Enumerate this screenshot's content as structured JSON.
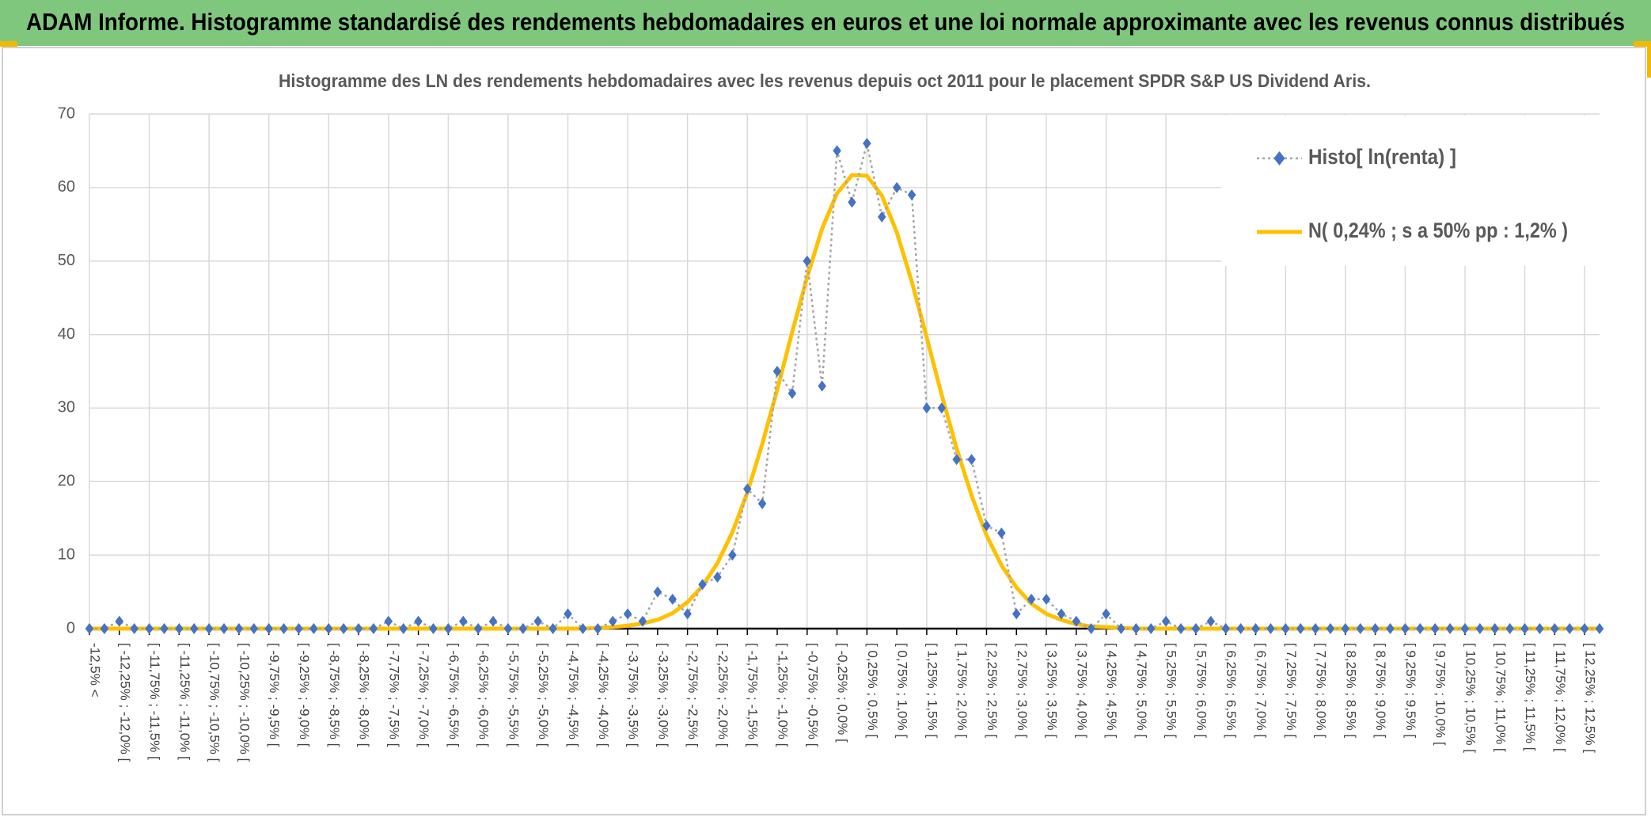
{
  "header": {
    "title": "ADAM Informe. Histogramme standardisé des rendements hebdomadaires en euros et une loi normale approximante avec les revenus connus distribués"
  },
  "chart_data": {
    "type": "line",
    "title": "Histogramme des LN des rendements hebdomadaires avec les revenus depuis oct 2011 pour le placement SPDR S&P US Dividend Aris.",
    "categories": [
      "-12,5% <",
      null,
      "[ -12,25% ; -12,0% [",
      null,
      "[ -11,75% ; -11,5% [",
      null,
      "[ -11,25% ; -11,0% [",
      null,
      "[ -10,75% ; -10,5% [",
      null,
      "[ -10,25% ; -10,0% [",
      null,
      "[ -9,75% ; -9,5% [",
      null,
      "[ -9,25% ; -9,0% [",
      null,
      "[ -8,75% ; -8,5% [",
      null,
      "[ -8,25% ; -8,0% [",
      null,
      "[ -7,75% ; -7,5% [",
      null,
      "[ -7,25% ; -7,0% [",
      null,
      "[ -6,75% ; -6,5% [",
      null,
      "[ -6,25% ; -6,0% [",
      null,
      "[ -5,75% ; -5,5% [",
      null,
      "[ -5,25% ; -5,0% [",
      null,
      "[ -4,75% ; -4,5% [",
      null,
      "[ -4,25% ; -4,0% [",
      null,
      "[ -3,75% ; -3,5% [",
      null,
      "[ -3,25% ; -3,0% [",
      null,
      "[ -2,75% ; -2,5% [",
      null,
      "[ -2,25% ; -2,0% [",
      null,
      "[ -1,75% ; -1,5% [",
      null,
      "[ -1,25% ; -1,0% [",
      null,
      "[ -0,75% ; -0,5% [",
      null,
      "[ -0,25% ; 0,0% [",
      null,
      "[ 0,25% ; 0,5% [",
      null,
      "[ 0,75% ; 1,0% [",
      null,
      "[ 1,25% ; 1,5% [",
      null,
      "[ 1,75% ; 2,0% [",
      null,
      "[ 2,25% ; 2,5% [",
      null,
      "[ 2,75% ; 3,0% [",
      null,
      "[ 3,25% ; 3,5% [",
      null,
      "[ 3,75% ; 4,0% [",
      null,
      "[ 4,25% ; 4,5% [",
      null,
      "[ 4,75% ; 5,0% [",
      null,
      "[ 5,25% ; 5,5% [",
      null,
      "[ 5,75% ; 6,0% [",
      null,
      "[ 6,25% ; 6,5% [",
      null,
      "[ 6,75% ; 7,0% [",
      null,
      "[ 7,25% ; 7,5% [",
      null,
      "[ 7,75% ; 8,0% [",
      null,
      "[ 8,25% ; 8,5% [",
      null,
      "[ 8,75% ; 9,0% [",
      null,
      "[ 9,25% ; 9,5% [",
      null,
      "[ 9,75% ; 10,0% [",
      null,
      "[ 10,25% ; 10,5% [",
      null,
      "[ 10,75% ; 11,0% [",
      null,
      "[ 11,25% ; 11,5% [",
      null,
      "[ 11,75% ; 12,0% [",
      null,
      "[ 12,25% ; 12,5% [",
      null
    ],
    "series": [
      {
        "name": "Histo[ ln(renta) ]",
        "color": "#4472c4",
        "line_color": "#a5a5a5",
        "marker": "diamond",
        "line_style": "dotted",
        "values": [
          0,
          0,
          1,
          0,
          0,
          0,
          0,
          0,
          0,
          0,
          0,
          0,
          0,
          0,
          0,
          0,
          0,
          0,
          0,
          0,
          1,
          0,
          1,
          0,
          0,
          1,
          0,
          1,
          0,
          0,
          1,
          0,
          2,
          0,
          0,
          1,
          2,
          1,
          5,
          4,
          2,
          6,
          7,
          10,
          19,
          17,
          35,
          32,
          50,
          33,
          65,
          58,
          66,
          56,
          60,
          59,
          30,
          30,
          23,
          23,
          14,
          13,
          2,
          4,
          4,
          2,
          1,
          0,
          2,
          0,
          0,
          0,
          1,
          0,
          0,
          1,
          0,
          0,
          0,
          0,
          0,
          0,
          0,
          0,
          0,
          0,
          0,
          0,
          0,
          0,
          0,
          0,
          0,
          0,
          0,
          0,
          0,
          0,
          0,
          0,
          0,
          0
        ]
      },
      {
        "name": "N( 0,24% ; s a 50% pp : 1,2% )",
        "color": "#ffc000",
        "line_style": "solid",
        "values": [
          0,
          0,
          0,
          0,
          0,
          0,
          0,
          0,
          0,
          0,
          0,
          0,
          0,
          0,
          0,
          0,
          0,
          0,
          0,
          0,
          0,
          0,
          0,
          0,
          0,
          0,
          0,
          0,
          0,
          0,
          0,
          0,
          0,
          0,
          0.1,
          0.2,
          0.4,
          0.7,
          1.2,
          2.1,
          3.6,
          5.8,
          8.9,
          13.1,
          18.5,
          25.1,
          32.5,
          40.3,
          47.8,
          54.4,
          59.2,
          61.7,
          61.6,
          58.9,
          53.9,
          47.2,
          39.6,
          31.8,
          24.5,
          18.1,
          12.7,
          8.6,
          5.6,
          3.4,
          2.0,
          1.2,
          0.6,
          0.3,
          0.2,
          0.1,
          0,
          0,
          0,
          0,
          0,
          0,
          0,
          0,
          0,
          0,
          0,
          0,
          0,
          0,
          0,
          0,
          0,
          0,
          0,
          0,
          0,
          0,
          0,
          0,
          0,
          0,
          0,
          0,
          0,
          0,
          0,
          0
        ]
      }
    ],
    "ylim": [
      0,
      70
    ],
    "yticks": [
      0,
      10,
      20,
      30,
      40,
      50,
      60,
      70
    ],
    "grid": true,
    "legend": "upper right"
  }
}
